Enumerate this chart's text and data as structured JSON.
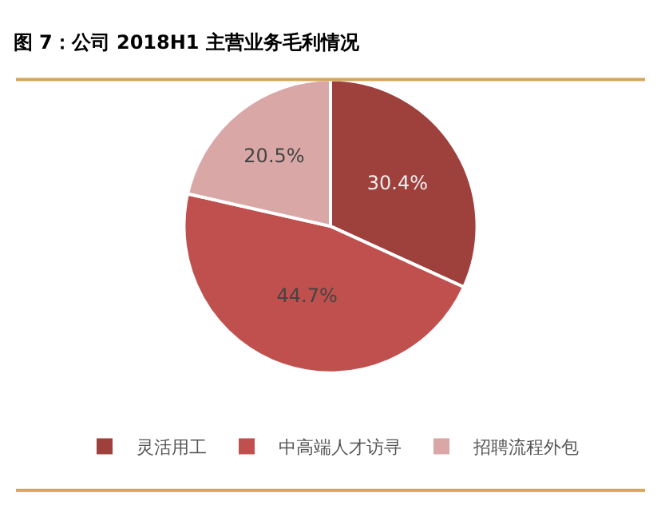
{
  "chart_data": {
    "type": "pie",
    "title": "图 7：公司 2018H1 主营业务毛利情况",
    "categories": [
      "灵活用工",
      "中高端人才访寻",
      "招聘流程外包"
    ],
    "values": [
      30.4,
      44.7,
      20.5
    ],
    "colors": [
      "#9e403c",
      "#c0504d",
      "#d9a8a6"
    ],
    "value_labels": [
      "30.4%",
      "44.7%",
      "20.5%"
    ],
    "legend": "bottom"
  }
}
